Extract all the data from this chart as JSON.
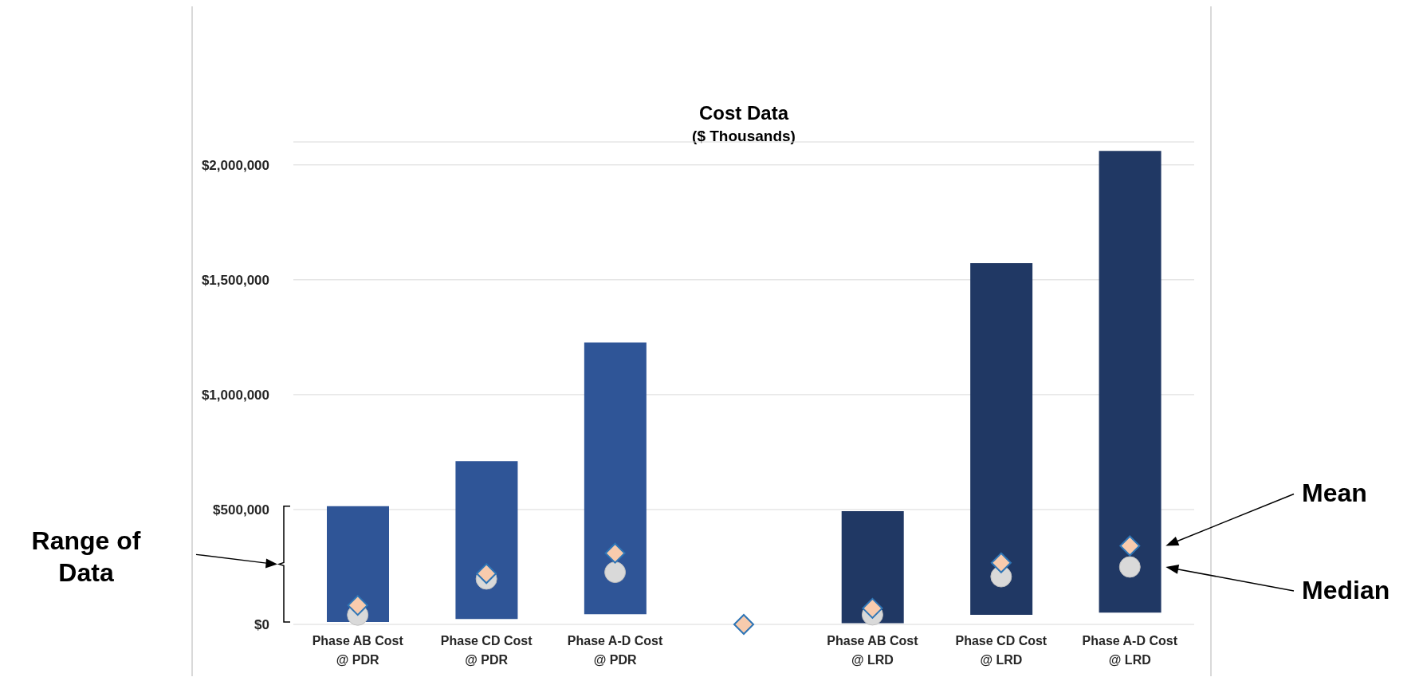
{
  "chart_data": {
    "type": "bar",
    "title": "Cost Data",
    "subtitle": "($ Thousands)",
    "categories": [
      "Phase AB Cost @ PDR",
      "Phase CD Cost @ PDR",
      "Phase A-D Cost @ PDR",
      null,
      "Phase AB Cost @ LRD",
      "Phase CD Cost @ LRD",
      "Phase A-D Cost @ LRD"
    ],
    "series": [
      {
        "values": [
          505000,
          688000,
          1183000,
          null,
          488000,
          1530000,
          2010000
        ],
        "base": [
          10000,
          23000,
          44000,
          null,
          5000,
          42000,
          51000
        ],
        "colors": [
          "#2f5597",
          "#2f5597",
          "#2f5597",
          "#2f5597",
          "#203864",
          "#203864",
          "#203864"
        ]
      },
      {
        "type": "scatter",
        "name": "Median",
        "color": "#d9d9d9",
        "marker": "circle",
        "values": [
          41000,
          198000,
          227000,
          null,
          42000,
          208000,
          250000
        ]
      },
      {
        "type": "scatter",
        "name": "Mean",
        "color": "#f8cbad",
        "marker": "diamond",
        "values": [
          83000,
          221000,
          310000,
          0,
          70000,
          268000,
          342000
        ]
      }
    ],
    "ylim": [
      0,
      2100000
    ],
    "yticks": [
      {
        "value": 0,
        "label": "$0"
      },
      {
        "value": 500000,
        "label": "$500,000"
      },
      {
        "value": 1000000,
        "label": "$1,000,000"
      },
      {
        "value": 1500000,
        "label": "$1,500,000"
      },
      {
        "value": 2000000,
        "label": "$2,000,000"
      }
    ],
    "grid": "y",
    "annotations": [
      "Range of Data"
    ]
  }
}
